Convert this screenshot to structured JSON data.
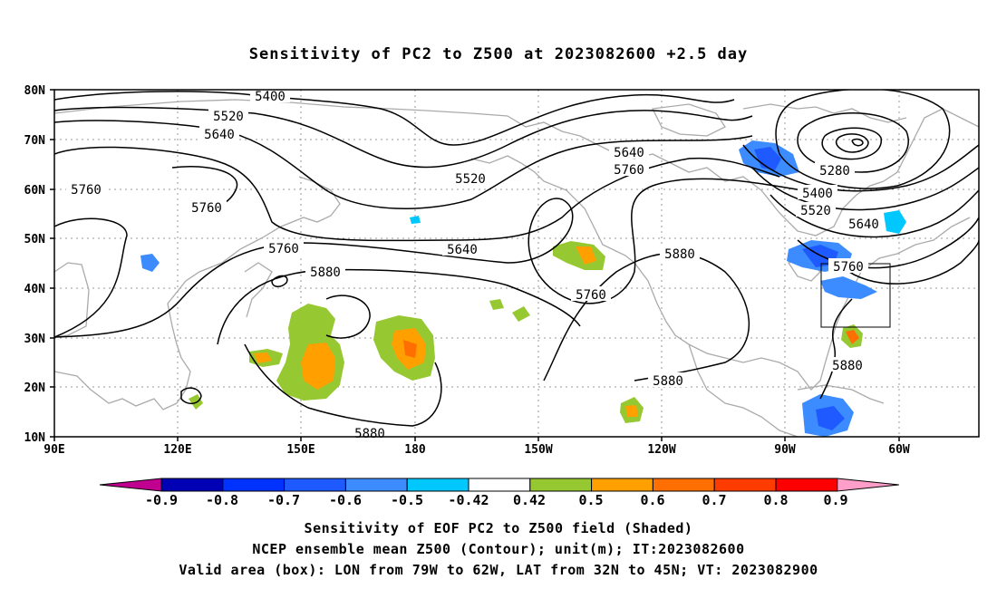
{
  "title": "Sensitivity of PC2 to Z500 at 2023082600 +2.5 day",
  "map": {
    "lat_labels": [
      "80N",
      "70N",
      "60N",
      "50N",
      "40N",
      "30N",
      "20N",
      "10N"
    ],
    "lon_labels": [
      "90E",
      "120E",
      "150E",
      "180",
      "150W",
      "120W",
      "90W",
      "60W"
    ]
  },
  "contours": [
    {
      "label": "5400",
      "x": "5400"
    },
    {
      "label": "5520",
      "x": "5520"
    },
    {
      "label": "5640",
      "x": "5640"
    },
    {
      "label": "5760",
      "x": "5760"
    },
    {
      "label": "5760",
      "x": "5760"
    },
    {
      "label": "5520",
      "x": "5520"
    },
    {
      "label": "5760",
      "x": "5760"
    },
    {
      "label": "5640",
      "x": "5640"
    },
    {
      "label": "5880",
      "x": "5880"
    },
    {
      "label": "5640",
      "x": "5640"
    },
    {
      "label": "5760",
      "x": "5760"
    },
    {
      "label": "5760",
      "x": "5760"
    },
    {
      "label": "5880",
      "x": "5880"
    },
    {
      "label": "5280",
      "x": "5280"
    },
    {
      "label": "5400",
      "x": "5400"
    },
    {
      "label": "5520",
      "x": "5520"
    },
    {
      "label": "5640",
      "x": "5640"
    },
    {
      "label": "5760",
      "x": "5760"
    },
    {
      "label": "5880",
      "x": "5880"
    },
    {
      "label": "5880",
      "x": "5880"
    },
    {
      "label": "5880",
      "x": "5880"
    }
  ],
  "colorbar": {
    "labels": [
      "-0.9",
      "-0.8",
      "-0.7",
      "-0.6",
      "-0.5",
      "-0.42",
      "0.42",
      "0.5",
      "0.6",
      "0.7",
      "0.8",
      "0.9"
    ],
    "colors": [
      "#c0008f",
      "#0000b4",
      "#0032ff",
      "#1e5aff",
      "#3c8cff",
      "#00c8ff",
      "#ffffff",
      "#96c832",
      "#ffa000",
      "#ff6e00",
      "#ff3c00",
      "#ff0000",
      "#ff9ec8"
    ]
  },
  "footer": {
    "line1": "Sensitivity of EOF PC2 to Z500 field (Shaded)",
    "line2": "NCEP ensemble mean Z500 (Contour); unit(m); IT:2023082600",
    "line3": "Valid area (box): LON from 79W to 62W, LAT from 32N to 45N; VT: 2023082900"
  }
}
